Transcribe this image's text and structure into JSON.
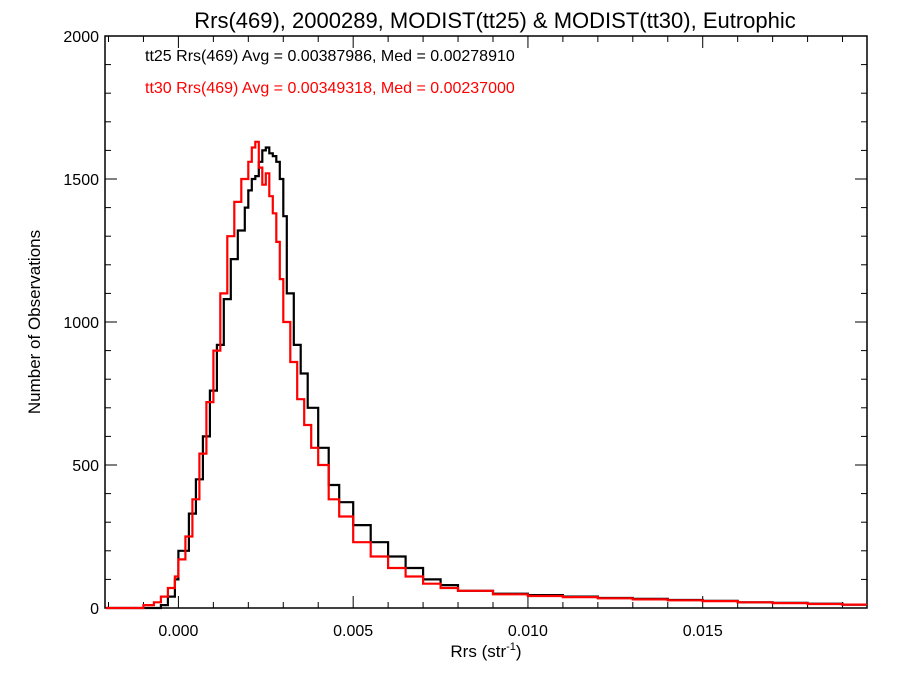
{
  "chart_data": {
    "type": "line",
    "title": "Rrs(469), 2000289, MODIST(tt25) & MODIST(tt30), Eutrophic",
    "xlabel": "Rrs (str",
    "xlabel_sup": "-1",
    "xlabel_end": ")",
    "ylabel": "Number of Observations",
    "xlim": [
      -0.0021,
      0.0197
    ],
    "ylim": [
      0,
      2000
    ],
    "x_ticks": [
      {
        "value": 0.0,
        "label": "0.000"
      },
      {
        "value": 0.005,
        "label": "0.005"
      },
      {
        "value": 0.01,
        "label": "0.010"
      },
      {
        "value": 0.015,
        "label": "0.015"
      }
    ],
    "y_ticks": [
      {
        "value": 0,
        "label": "0"
      },
      {
        "value": 500,
        "label": "500"
      },
      {
        "value": 1000,
        "label": "1000"
      },
      {
        "value": 1500,
        "label": "1500"
      },
      {
        "value": 2000,
        "label": "2000"
      }
    ],
    "grid": false,
    "annotations": [
      {
        "text": "tt25 Rrs(469) Avg = 0.00387986, Med = 0.00278910",
        "color": "#000000"
      },
      {
        "text": "tt30 Rrs(469) Avg = 0.00349318, Med = 0.00237000",
        "color": "#ff0000"
      }
    ],
    "series": [
      {
        "color": "#000000",
        "x": [
          -0.0021,
          -0.0015,
          -0.001,
          -0.0005,
          -0.0003,
          -0.0001,
          0.0,
          0.0003,
          0.0005,
          0.0007,
          0.0009,
          0.0011,
          0.0013,
          0.0015,
          0.0017,
          0.0019,
          0.002,
          0.0021,
          0.0022,
          0.0023,
          0.0024,
          0.0025,
          0.0026,
          0.0027,
          0.0028,
          0.0029,
          0.003,
          0.0031,
          0.0033,
          0.0035,
          0.0037,
          0.004,
          0.0043,
          0.0046,
          0.005,
          0.0055,
          0.006,
          0.0065,
          0.007,
          0.0075,
          0.008,
          0.009,
          0.01,
          0.011,
          0.012,
          0.013,
          0.014,
          0.015,
          0.016,
          0.017,
          0.018,
          0.019,
          0.0197
        ],
        "y": [
          0,
          0,
          0,
          10,
          40,
          100,
          200,
          330,
          450,
          600,
          760,
          920,
          1080,
          1220,
          1320,
          1400,
          1460,
          1500,
          1510,
          1560,
          1600,
          1610,
          1590,
          1580,
          1560,
          1500,
          1370,
          1100,
          920,
          820,
          700,
          560,
          430,
          370,
          290,
          230,
          180,
          140,
          100,
          80,
          60,
          50,
          45,
          40,
          35,
          32,
          28,
          25,
          20,
          18,
          15,
          12,
          10
        ]
      },
      {
        "color": "#ff0000",
        "x": [
          -0.0021,
          -0.0015,
          -0.001,
          -0.0007,
          -0.0005,
          -0.0003,
          -0.0001,
          0.0,
          0.0002,
          0.0004,
          0.0006,
          0.0008,
          0.001,
          0.0012,
          0.0014,
          0.0016,
          0.0018,
          0.002,
          0.0021,
          0.0022,
          0.0023,
          0.0024,
          0.0025,
          0.0026,
          0.0027,
          0.0028,
          0.0029,
          0.003,
          0.0032,
          0.0034,
          0.0036,
          0.0038,
          0.004,
          0.0043,
          0.0046,
          0.005,
          0.0055,
          0.006,
          0.0065,
          0.007,
          0.0075,
          0.008,
          0.009,
          0.01,
          0.011,
          0.012,
          0.013,
          0.014,
          0.015,
          0.016,
          0.017,
          0.018,
          0.019,
          0.0197
        ],
        "y": [
          0,
          0,
          10,
          20,
          40,
          70,
          110,
          170,
          250,
          380,
          540,
          720,
          900,
          1100,
          1300,
          1420,
          1500,
          1560,
          1610,
          1630,
          1540,
          1480,
          1520,
          1440,
          1380,
          1280,
          1150,
          1000,
          860,
          730,
          640,
          560,
          500,
          380,
          320,
          230,
          180,
          140,
          110,
          85,
          70,
          60,
          48,
          42,
          38,
          34,
          30,
          27,
          24,
          20,
          17,
          14,
          12,
          10
        ]
      }
    ]
  }
}
